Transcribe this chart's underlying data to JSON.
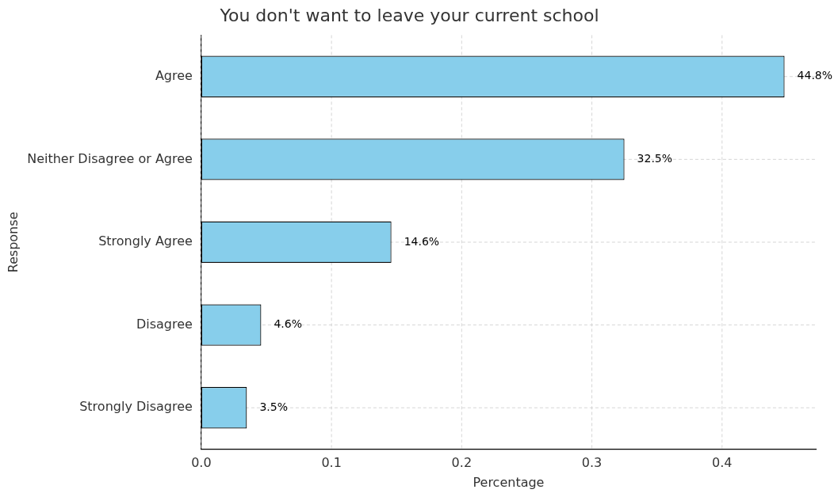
{
  "chart_data": {
    "type": "bar",
    "orientation": "horizontal",
    "title": "You don't want to leave your current school",
    "xlabel": "Percentage",
    "ylabel": "Response",
    "categories": [
      "Agree",
      "Neither Disagree or Agree",
      "Strongly Agree",
      "Disagree",
      "Strongly Disagree"
    ],
    "values": [
      0.448,
      0.325,
      0.146,
      0.046,
      0.035
    ],
    "value_labels": [
      "44.8%",
      "32.5%",
      "14.6%",
      "4.6%",
      "3.5%"
    ],
    "color": "#87ceeb",
    "xlim": [
      0,
      0.472
    ],
    "xticks": [
      {
        "value": 0,
        "label": "0.0"
      },
      {
        "value": 0.1,
        "label": "0.1"
      },
      {
        "value": 0.2,
        "label": "0.2"
      },
      {
        "value": 0.3,
        "label": "0.3"
      },
      {
        "value": 0.4,
        "label": "0.4"
      }
    ],
    "grid": true,
    "legend": false
  }
}
